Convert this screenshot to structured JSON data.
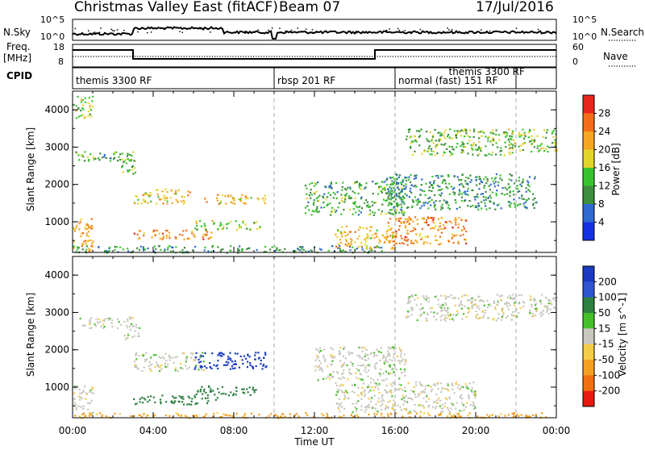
{
  "header": {
    "title": "Christmas Valley East (fitACF)",
    "beam": "Beam 07",
    "date": "17/Jul/2016"
  },
  "nsky_panel": {
    "left_label": "N.Sky",
    "right_label": "N.Search",
    "left_ticks": [
      "10^5",
      "10^0"
    ],
    "right_ticks": [
      "10^5",
      "10^0"
    ]
  },
  "freq_panel": {
    "left_label_1": "Freq.",
    "left_label_2": "[MHz]",
    "right_label": "Nave",
    "left_ticks": [
      "18",
      "8"
    ],
    "right_ticks": [
      "60",
      "0"
    ]
  },
  "cpid_panel": {
    "label": "CPID",
    "segments": [
      {
        "text": "themis 3300 RF",
        "start_hour": 0
      },
      {
        "text": "rbsp 201 RF",
        "start_hour": 10
      },
      {
        "text": "normal (fast) 151 RF",
        "start_hour": 16
      },
      {
        "text": "themis 3300 RF",
        "start_hour": 18.5
      }
    ],
    "boundaries_hours": [
      10,
      16,
      22
    ]
  },
  "x_axis": {
    "label": "Time UT",
    "ticks": [
      "00:00",
      "04:00",
      "08:00",
      "12:00",
      "16:00",
      "20:00",
      "00:00"
    ],
    "range_hours": [
      0,
      24
    ]
  },
  "chart_data": [
    {
      "type": "heatmap",
      "name": "power",
      "ylabel": "Slant Range [km]",
      "ylim": [
        180,
        4500
      ],
      "yticks": [
        "1000",
        "2000",
        "3000",
        "4000"
      ],
      "ytick_values": [
        1000,
        2000,
        3000,
        4000
      ],
      "colorbar": {
        "label": "Power [dB]",
        "ticks": [
          "4",
          "8",
          "12",
          "16",
          "20",
          "24",
          "28"
        ],
        "levels": [
          0,
          4,
          8,
          12,
          16,
          20,
          24,
          28,
          32
        ],
        "colors": [
          "#1530e0",
          "#2f6ad0",
          "#3e8c3e",
          "#39c42f",
          "#e3d52b",
          "#f5a623",
          "#f46d1b",
          "#e8261c"
        ]
      },
      "regions": [
        {
          "t0": 0.0,
          "t1": 1.0,
          "r0": 3800,
          "r1": 4400,
          "v": 16
        },
        {
          "t0": 0.1,
          "t1": 3.0,
          "r0": 2600,
          "r1": 2900,
          "v": 12
        },
        {
          "t0": 2.4,
          "t1": 3.2,
          "r0": 2300,
          "r1": 2700,
          "v": 14
        },
        {
          "t0": 3.0,
          "t1": 5.8,
          "r0": 1500,
          "r1": 1900,
          "v": 20
        },
        {
          "t0": 6.5,
          "t1": 9.7,
          "r0": 1500,
          "r1": 1750,
          "v": 20
        },
        {
          "t0": 3.0,
          "t1": 7.0,
          "r0": 550,
          "r1": 800,
          "v": 24
        },
        {
          "t0": 6.0,
          "t1": 9.3,
          "r0": 800,
          "r1": 1050,
          "v": 16
        },
        {
          "t0": 0.0,
          "t1": 1.0,
          "r0": 200,
          "r1": 1100,
          "v": 22
        },
        {
          "t0": 0.0,
          "t1": 15.5,
          "r0": 190,
          "r1": 380,
          "v": 10
        },
        {
          "t0": 11.5,
          "t1": 16.5,
          "r0": 1200,
          "r1": 2100,
          "v": 12
        },
        {
          "t0": 13.0,
          "t1": 16.0,
          "r0": 300,
          "r1": 900,
          "v": 20
        },
        {
          "t0": 15.5,
          "t1": 19.5,
          "r0": 400,
          "r1": 1150,
          "v": 24
        },
        {
          "t0": 15.5,
          "t1": 23.0,
          "r0": 1350,
          "r1": 2300,
          "v": 10
        },
        {
          "t0": 16.5,
          "t1": 22.0,
          "r0": 2800,
          "r1": 3500,
          "v": 14
        },
        {
          "t0": 21.5,
          "t1": 24.0,
          "r0": 2900,
          "r1": 3500,
          "v": 16
        }
      ]
    },
    {
      "type": "heatmap",
      "name": "velocity",
      "ylabel": "Slant Range [km]",
      "ylim": [
        180,
        4500
      ],
      "yticks": [
        "1000",
        "2000",
        "3000",
        "4000"
      ],
      "ytick_values": [
        1000,
        2000,
        3000,
        4000
      ],
      "colorbar": {
        "label": "Velocity [m s^-1]",
        "ticks": [
          "200",
          "100",
          "50",
          "15",
          "-15",
          "-50",
          "-100",
          "-200"
        ],
        "levels": [
          250,
          200,
          100,
          50,
          15,
          -15,
          -50,
          -100,
          -200,
          -250
        ],
        "colors": [
          "#1a3ac0",
          "#2f55d0",
          "#2e8040",
          "#46c02a",
          "#c8c8c0",
          "#f5cc48",
          "#f5a020",
          "#f07010",
          "#e81810"
        ]
      },
      "regions": [
        {
          "t0": 0.3,
          "t1": 3.0,
          "r0": 2600,
          "r1": 2900,
          "v": 0
        },
        {
          "t0": 2.5,
          "t1": 3.3,
          "r0": 2300,
          "r1": 2700,
          "v": 0
        },
        {
          "t0": 3.0,
          "t1": 6.5,
          "r0": 1450,
          "r1": 1950,
          "v": 0
        },
        {
          "t0": 6.0,
          "t1": 9.7,
          "r0": 1500,
          "r1": 1950,
          "v": 220
        },
        {
          "t0": 3.0,
          "t1": 7.2,
          "r0": 550,
          "r1": 800,
          "v": 70
        },
        {
          "t0": 6.0,
          "t1": 9.3,
          "r0": 800,
          "r1": 1050,
          "v": 70
        },
        {
          "t0": 0.0,
          "t1": 1.0,
          "r0": 300,
          "r1": 1100,
          "v": 0
        },
        {
          "t0": 0.0,
          "t1": 24.0,
          "r0": 190,
          "r1": 330,
          "v": -60
        },
        {
          "t0": 12.0,
          "t1": 16.5,
          "r0": 1200,
          "r1": 2100,
          "v": 0
        },
        {
          "t0": 13.0,
          "t1": 20.0,
          "r0": 350,
          "r1": 1150,
          "v": 0
        },
        {
          "t0": 16.5,
          "t1": 22.0,
          "r0": 2800,
          "r1": 3500,
          "v": 0
        },
        {
          "t0": 21.5,
          "t1": 24.0,
          "r0": 2900,
          "r1": 3500,
          "v": 0
        }
      ]
    }
  ]
}
